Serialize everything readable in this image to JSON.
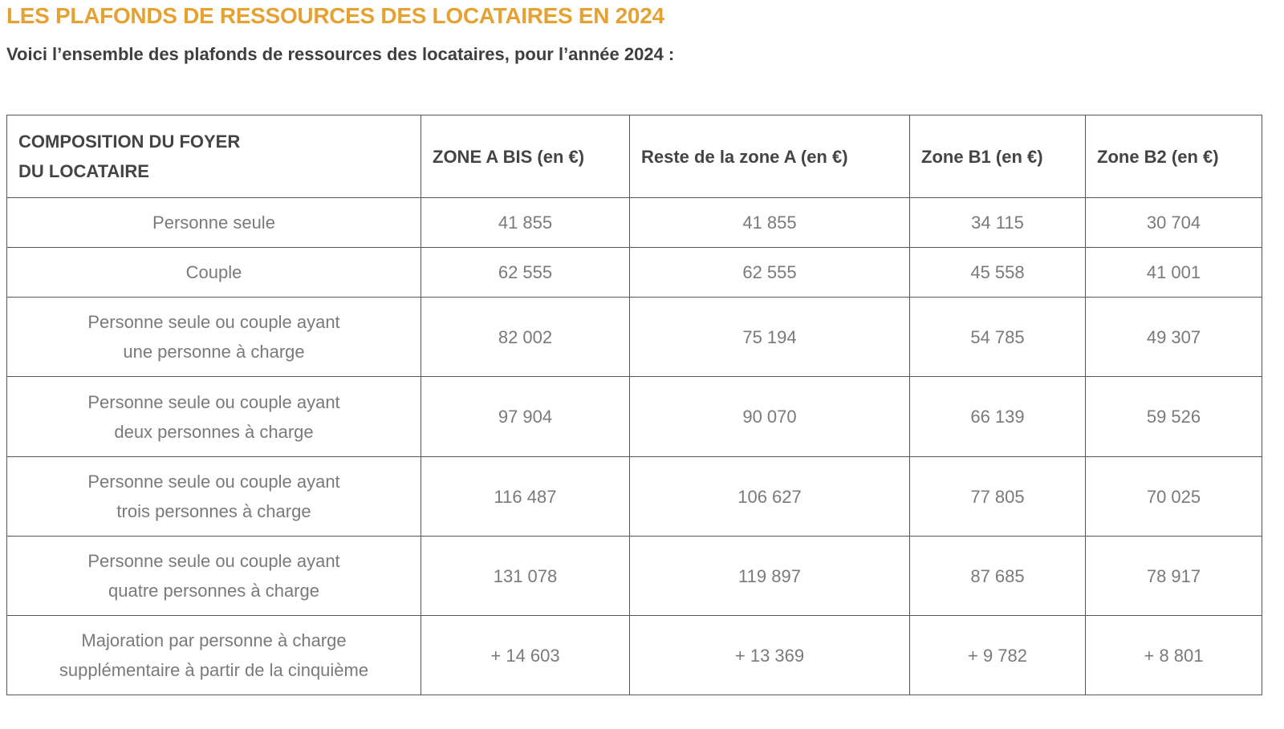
{
  "header": {
    "title": "LES PLAFONDS DE RESSOURCES DES LOCATAIRES EN 2024",
    "subtitle": "Voici l’ensemble des plafonds de ressources des locataires, pour l’année 2024 :"
  },
  "table": {
    "header": [
      [
        "COMPOSITION DU FOYER",
        "DU LOCATAIRE"
      ],
      [
        "ZONE A BIS (en €)"
      ],
      [
        "Reste de la zone A (en €)"
      ],
      [
        "Zone B1 (en €)"
      ],
      [
        "Zone B2 (en €)"
      ]
    ],
    "rows": [
      [
        [
          "Personne seule"
        ],
        [
          "41 855"
        ],
        [
          "41 855"
        ],
        [
          "34 115"
        ],
        [
          "30 704"
        ]
      ],
      [
        [
          "Couple"
        ],
        [
          "62 555"
        ],
        [
          "62 555"
        ],
        [
          "45 558"
        ],
        [
          "41 001"
        ]
      ],
      [
        [
          "Personne seule ou couple ayant",
          "une personne à charge"
        ],
        [
          "82 002"
        ],
        [
          "75 194"
        ],
        [
          "54 785"
        ],
        [
          "49 307"
        ]
      ],
      [
        [
          "Personne seule ou couple ayant",
          "deux personnes à charge"
        ],
        [
          "97 904"
        ],
        [
          "90 070"
        ],
        [
          "66 139"
        ],
        [
          "59 526"
        ]
      ],
      [
        [
          "Personne seule ou couple ayant",
          "trois personnes à charge"
        ],
        [
          "116 487"
        ],
        [
          "106 627"
        ],
        [
          "77 805"
        ],
        [
          "70 025"
        ]
      ],
      [
        [
          "Personne seule ou couple ayant",
          "quatre personnes à charge"
        ],
        [
          "131 078"
        ],
        [
          "119 897"
        ],
        [
          "87 685"
        ],
        [
          "78 917"
        ]
      ],
      [
        [
          "Majoration par personne à charge",
          "supplémentaire à partir de la cinquième"
        ],
        [
          "+ 14 603"
        ],
        [
          "+ 13 369"
        ],
        [
          "+ 9 782"
        ],
        [
          "+ 8 801"
        ]
      ]
    ]
  }
}
